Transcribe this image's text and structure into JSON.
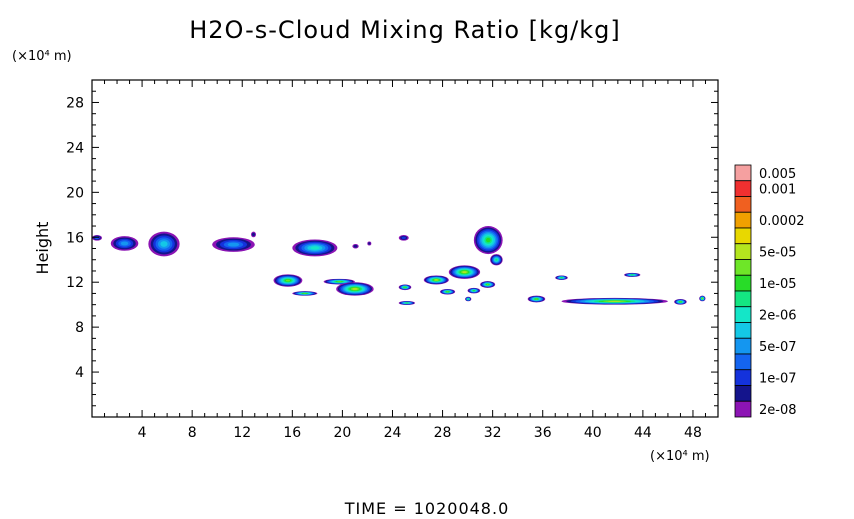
{
  "chart_data": {
    "type": "heatmap",
    "title": "H2O-s-Cloud Mixing Ratio [kg/kg]",
    "ylabel": "Height",
    "y_unit": "(×10⁴ m)",
    "x_unit": "(×10⁴ m)",
    "footer": "TIME =  1020048.0",
    "xlim": [
      0,
      50
    ],
    "ylim": [
      0,
      30
    ],
    "x_ticks": [
      4,
      8,
      12,
      16,
      20,
      24,
      28,
      32,
      36,
      40,
      44,
      48
    ],
    "y_ticks": [
      4,
      8,
      12,
      16,
      20,
      24,
      28
    ],
    "colorbar": [
      {
        "label": "0.005",
        "color": "#f5a0a0"
      },
      {
        "label": "0.001",
        "color": "#f03030"
      },
      {
        "label": "",
        "color": "#f06020"
      },
      {
        "label": "0.0002",
        "color": "#f0a000"
      },
      {
        "label": "",
        "color": "#e8d800"
      },
      {
        "label": "5e-05",
        "color": "#b4e61e"
      },
      {
        "label": "",
        "color": "#6ee628"
      },
      {
        "label": "1e-05",
        "color": "#28dc28"
      },
      {
        "label": "",
        "color": "#14e682"
      },
      {
        "label": "2e-06",
        "color": "#14e6c8"
      },
      {
        "label": "",
        "color": "#14c8e6"
      },
      {
        "label": "5e-07",
        "color": "#1496f0"
      },
      {
        "label": "",
        "color": "#1464f0"
      },
      {
        "label": "1e-07",
        "color": "#1432dc"
      },
      {
        "label": "",
        "color": "#14148c"
      },
      {
        "label": "2e-08",
        "color": "#8c14b4"
      }
    ],
    "cloud_patches": [
      {
        "x": [
          0.0,
          0.8
        ],
        "y": [
          15.7,
          16.2
        ],
        "level": 3
      },
      {
        "x": [
          1.5,
          3.7
        ],
        "y": [
          14.8,
          16.1
        ],
        "level": 4
      },
      {
        "x": [
          4.5,
          7.0
        ],
        "y": [
          14.3,
          16.5
        ],
        "level": 5
      },
      {
        "x": [
          9.6,
          13.0
        ],
        "y": [
          14.7,
          16.0
        ],
        "level": 4
      },
      {
        "x": [
          12.7,
          13.1
        ],
        "y": [
          16.0,
          16.5
        ],
        "level": 1
      },
      {
        "x": [
          16.0,
          19.6
        ],
        "y": [
          14.3,
          15.8
        ],
        "level": 6
      },
      {
        "x": [
          20.8,
          21.3
        ],
        "y": [
          15.0,
          15.4
        ],
        "level": 1
      },
      {
        "x": [
          22.0,
          22.3
        ],
        "y": [
          15.3,
          15.6
        ],
        "level": 1
      },
      {
        "x": [
          24.5,
          25.3
        ],
        "y": [
          15.7,
          16.2
        ],
        "level": 2
      },
      {
        "x": [
          30.5,
          32.8
        ],
        "y": [
          14.5,
          17.0
        ],
        "level": 8
      },
      {
        "x": [
          31.8,
          32.8
        ],
        "y": [
          13.5,
          14.5
        ],
        "level": 7
      },
      {
        "x": [
          14.5,
          16.8
        ],
        "y": [
          11.6,
          12.7
        ],
        "level": 9
      },
      {
        "x": [
          16.0,
          18.0
        ],
        "y": [
          10.8,
          11.2
        ],
        "level": 9
      },
      {
        "x": [
          18.5,
          21.0
        ],
        "y": [
          11.8,
          12.3
        ],
        "level": 9
      },
      {
        "x": [
          19.5,
          22.5
        ],
        "y": [
          10.8,
          12.0
        ],
        "level": 10
      },
      {
        "x": [
          24.5,
          25.5
        ],
        "y": [
          11.3,
          11.8
        ],
        "level": 9
      },
      {
        "x": [
          24.5,
          25.8
        ],
        "y": [
          10.0,
          10.3
        ],
        "level": 8
      },
      {
        "x": [
          26.5,
          28.5
        ],
        "y": [
          11.8,
          12.6
        ],
        "level": 10
      },
      {
        "x": [
          28.5,
          31.0
        ],
        "y": [
          12.3,
          13.5
        ],
        "level": 10
      },
      {
        "x": [
          27.8,
          29.0
        ],
        "y": [
          10.9,
          11.4
        ],
        "level": 9
      },
      {
        "x": [
          30.0,
          31.0
        ],
        "y": [
          11.0,
          11.5
        ],
        "level": 8
      },
      {
        "x": [
          31.0,
          32.2
        ],
        "y": [
          11.5,
          12.1
        ],
        "level": 9
      },
      {
        "x": [
          29.8,
          30.3
        ],
        "y": [
          10.3,
          10.7
        ],
        "level": 8
      },
      {
        "x": [
          34.8,
          36.2
        ],
        "y": [
          10.2,
          10.8
        ],
        "level": 9
      },
      {
        "x": [
          37.0,
          38.0
        ],
        "y": [
          12.2,
          12.6
        ],
        "level": 8
      },
      {
        "x": [
          37.5,
          46.0
        ],
        "y": [
          10.0,
          10.6
        ],
        "level": 10
      },
      {
        "x": [
          42.5,
          43.8
        ],
        "y": [
          12.5,
          12.8
        ],
        "level": 8
      },
      {
        "x": [
          46.5,
          47.5
        ],
        "y": [
          10.0,
          10.5
        ],
        "level": 9
      },
      {
        "x": [
          48.5,
          49.0
        ],
        "y": [
          10.3,
          10.8
        ],
        "level": 10
      }
    ]
  }
}
